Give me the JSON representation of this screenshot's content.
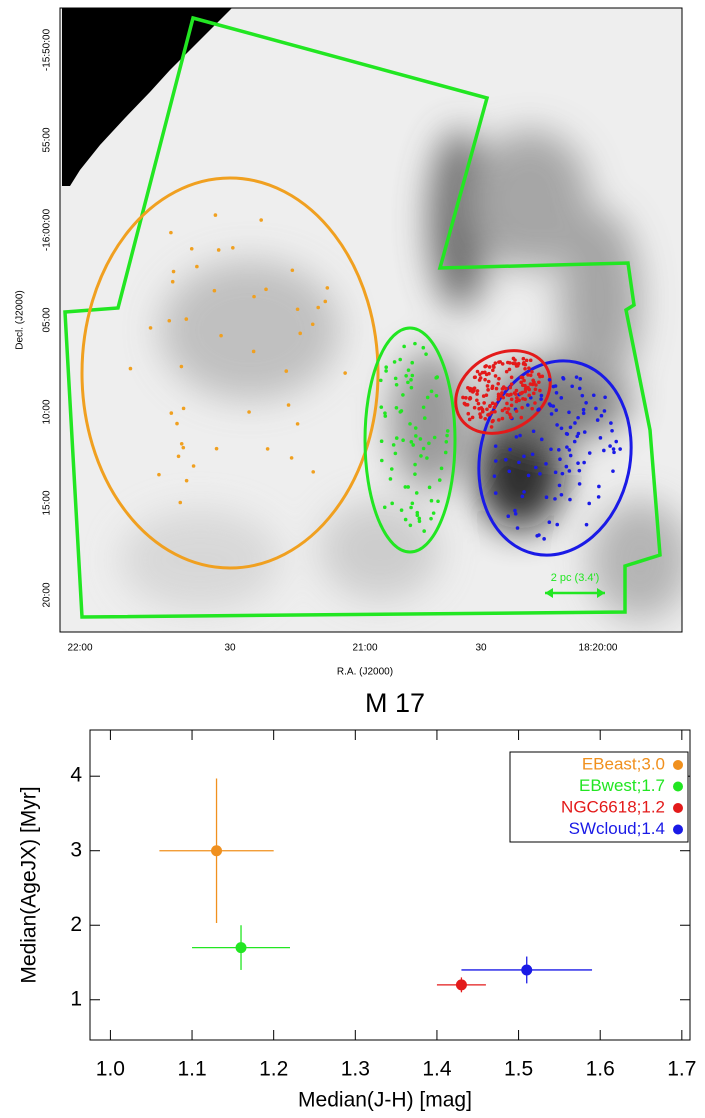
{
  "map": {
    "x_axis_title": "R.A. (J2000)",
    "y_axis_title": "Decl. (J2000)",
    "x_tick_labels": [
      "22:00",
      "30",
      "21:00",
      "30",
      "18:20:00"
    ],
    "y_tick_labels": [
      "-15:50:00",
      "55:00",
      "-16:00:00",
      "05:00",
      "10:00",
      "15:00",
      "20:00"
    ],
    "scale_bar": "2 pc (3.4')"
  },
  "chart_data": {
    "type": "scatter",
    "title": "M 17",
    "x_label": "Median(J-H) [mag]",
    "y_label": "Median(AgeJX) [Myr]",
    "xlim": [
      0.975,
      1.71
    ],
    "ylim": [
      0.46,
      4.62
    ],
    "xticks": [
      {
        "value": 1,
        "label": "1.0"
      },
      1.1,
      1.2,
      1.3,
      1.4,
      1.5,
      1.6,
      1.7
    ],
    "yticks": [
      1,
      2,
      3,
      4
    ],
    "legend": "upper right",
    "series": [
      {
        "name": "EBeast;3.0",
        "color": "#f0901e",
        "x": [
          1.13
        ],
        "values": [
          3.0
        ],
        "xerr": [
          0.07
        ],
        "yerr": [
          0.97
        ]
      },
      {
        "name": "EBwest;1.7",
        "color": "#22e622",
        "x": [
          1.16
        ],
        "values": [
          1.7
        ],
        "xerr": [
          0.06
        ],
        "yerr": [
          0.3
        ]
      },
      {
        "name": "NGC6618;1.2",
        "color": "#e31a1a",
        "x": [
          1.43
        ],
        "values": [
          1.2
        ],
        "xerr": [
          0.03
        ],
        "yerr": [
          0.1
        ]
      },
      {
        "name": "SWcloud;1.4",
        "color": "#1a1ae6",
        "x": [
          1.51
        ],
        "values": [
          1.4
        ],
        "xerr": [
          0.08
        ],
        "yerr": [
          0.18
        ]
      }
    ]
  }
}
